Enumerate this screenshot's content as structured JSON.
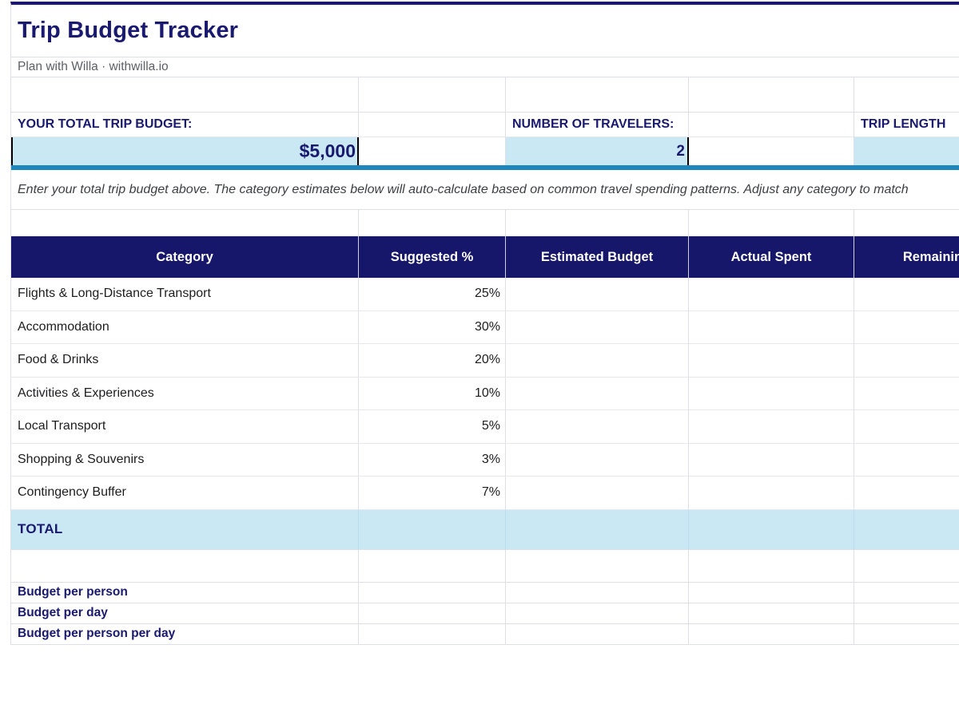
{
  "page": {
    "title": "Trip Budget Tracker",
    "subtitle": "Plan with Willa · withwilla.io"
  },
  "inputs": {
    "budget": {
      "label": "YOUR TOTAL TRIP BUDGET:",
      "value": "$5,000"
    },
    "travelers": {
      "label": "NUMBER OF TRAVELERS:",
      "value": "2"
    },
    "trip_length": {
      "label": "TRIP LENGTH",
      "value": ""
    }
  },
  "instruction": "Enter your total trip budget above. The category estimates below will auto-calculate based on common travel spending patterns. Adjust any category to match",
  "table": {
    "headers": [
      "Category",
      "Suggested %",
      "Estimated Budget",
      "Actual Spent",
      "Remaining"
    ],
    "rows": [
      {
        "category": "Flights & Long-Distance Transport",
        "suggested": "25%",
        "estimated": "",
        "actual": "",
        "remaining": ""
      },
      {
        "category": "Accommodation",
        "suggested": "30%",
        "estimated": "",
        "actual": "",
        "remaining": ""
      },
      {
        "category": "Food & Drinks",
        "suggested": "20%",
        "estimated": "",
        "actual": "",
        "remaining": ""
      },
      {
        "category": "Activities & Experiences",
        "suggested": "10%",
        "estimated": "",
        "actual": "",
        "remaining": ""
      },
      {
        "category": "Local Transport",
        "suggested": "5%",
        "estimated": "",
        "actual": "",
        "remaining": ""
      },
      {
        "category": "Shopping & Souvenirs",
        "suggested": "3%",
        "estimated": "",
        "actual": "",
        "remaining": ""
      },
      {
        "category": "Contingency Buffer",
        "suggested": "7%",
        "estimated": "",
        "actual": "",
        "remaining": ""
      }
    ],
    "total_label": "TOTAL"
  },
  "footer_rows": [
    "Budget per person",
    "Budget per day",
    "Budget per person per day"
  ],
  "colors": {
    "navy": "#191970",
    "header_background": "#16166B",
    "input_cell_background": "#C9E8F4",
    "divider_bar": "#1E86BD",
    "gridline": "#DCDEE8"
  }
}
